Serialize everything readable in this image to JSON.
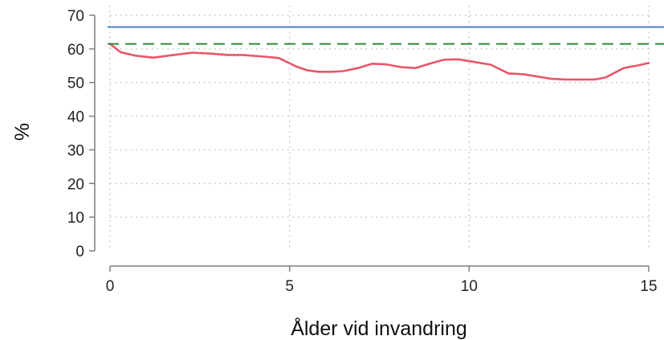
{
  "chart_data": {
    "type": "line",
    "title": "",
    "xlabel": "Ålder vid invandring",
    "ylabel": "%",
    "xlim": [
      0,
      15
    ],
    "ylim": [
      0,
      70
    ],
    "xticks": [
      0,
      5,
      10,
      15
    ],
    "yticks": [
      0,
      10,
      20,
      30,
      40,
      50,
      60,
      70
    ],
    "grid": true,
    "grid_style": "dotted",
    "series": [
      {
        "kind": "line",
        "color": "#e8566a",
        "style": "solid",
        "x": [
          0,
          0.3,
          0.7,
          1.2,
          1.7,
          2.3,
          2.8,
          3.3,
          3.7,
          4.3,
          4.7,
          5.2,
          5.5,
          5.8,
          6.2,
          6.5,
          6.9,
          7.3,
          7.7,
          8.1,
          8.5,
          8.9,
          9.3,
          9.7,
          10.1,
          10.6,
          11.1,
          11.5,
          11.9,
          12.3,
          12.7,
          13.1,
          13.5,
          13.8,
          14.3,
          14.7,
          15
        ],
        "y": [
          61.5,
          59,
          58,
          57.4,
          58.1,
          58.9,
          58.6,
          58.2,
          58.2,
          57.7,
          57.3,
          54.7,
          53.6,
          53.2,
          53.2,
          53.4,
          54.3,
          55.6,
          55.4,
          54.6,
          54.3,
          55.6,
          56.8,
          56.9,
          56.2,
          55.3,
          52.7,
          52.5,
          51.8,
          51.1,
          50.9,
          50.9,
          50.9,
          51.5,
          54.3,
          55.1,
          55.8
        ]
      },
      {
        "kind": "hline",
        "color": "#4a7fbf",
        "style": "solid",
        "y": 66.5
      },
      {
        "kind": "hline",
        "color": "#2e8b3a",
        "style": "dashed",
        "y": 61.5
      }
    ]
  }
}
